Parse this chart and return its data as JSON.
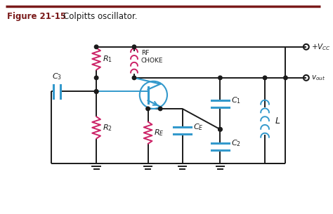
{
  "title_bold": "Figure 21-15",
  "title_normal": "Colpitts oscillator.",
  "bg_color": "#ffffff",
  "line_color": "#1a1a1a",
  "resistor_color": "#cc2266",
  "capacitor_color": "#3399cc",
  "inductor_color": "#3399cc",
  "transistor_color": "#3399cc",
  "title_color": "#7a1a1a",
  "title_line_color": "#7a1a1a"
}
